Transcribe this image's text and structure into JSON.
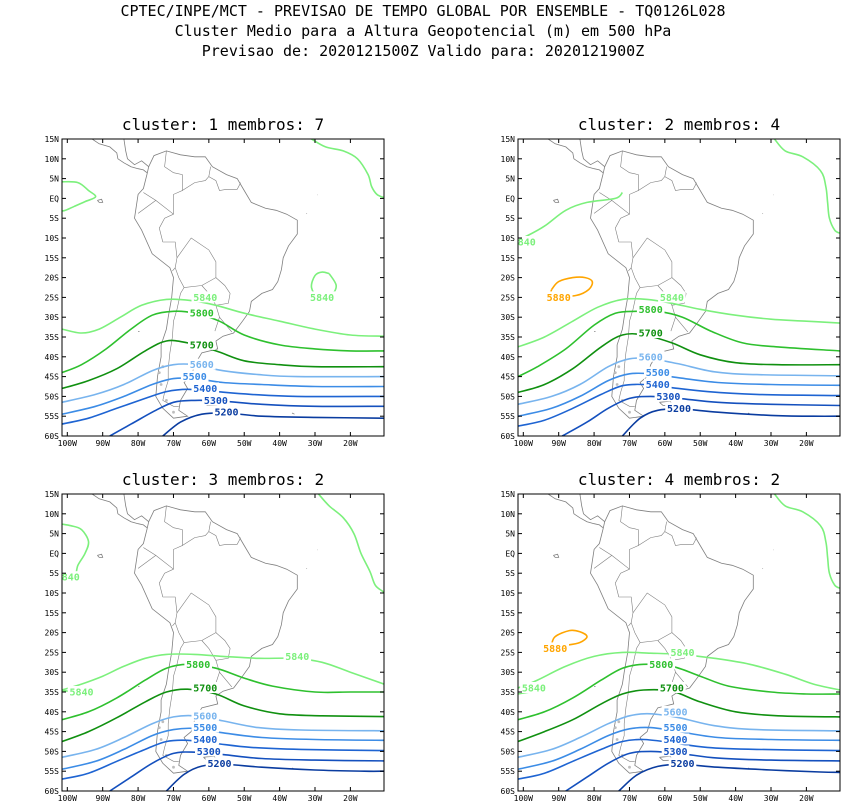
{
  "header": {
    "line1": "CPTEC/INPE/MCT - PREVISAO DE TEMPO GLOBAL POR ENSEMBLE - TQ0126L028",
    "line2": "Cluster Medio para a Altura Geopotencial (m) em 500 hPa",
    "line3": "Previsao de: 2020121500Z   Valido para: 2020121900Z"
  },
  "axes": {
    "lat_labels": [
      "15N",
      "10N",
      "5N",
      "EQ",
      "5S",
      "10S",
      "15S",
      "20S",
      "25S",
      "30S",
      "35S",
      "40S",
      "45S",
      "50S",
      "55S",
      "60S"
    ],
    "lon_labels": [
      "100W",
      "90W",
      "80W",
      "70W",
      "60W",
      "50W",
      "40W",
      "30W",
      "20W"
    ]
  },
  "colors": {
    "c5880": "#ffa500",
    "c5840": "#7cf07c",
    "c5800": "#2ec02e",
    "c5700": "#109010",
    "c5600": "#78b4ee",
    "c5500": "#3c8ce6",
    "c5400": "#1e64d2",
    "c5300": "#1450be",
    "c5200": "#0a3ca0",
    "coast": "#7f7f7f"
  },
  "panels": [
    {
      "title": "cluster: 1   membros: 7",
      "contours": [
        {
          "level": 5840,
          "label": "5840",
          "key": "c5840",
          "label_pt": [
            -61,
            -25
          ]
        },
        {
          "level": 5800,
          "label": "5800",
          "key": "c5800",
          "label_pt": [
            -62,
            -29
          ]
        },
        {
          "level": 5700,
          "label": "5700",
          "key": "c5700",
          "label_pt": [
            -62,
            -37
          ]
        },
        {
          "level": 5600,
          "label": "5600",
          "key": "c5600",
          "label_pt": [
            -62,
            -42
          ]
        },
        {
          "level": 5500,
          "label": "5500",
          "key": "c5500",
          "label_pt": [
            -64,
            -45
          ]
        },
        {
          "level": 5400,
          "label": "5400",
          "key": "c5400",
          "label_pt": [
            -61,
            -48
          ]
        },
        {
          "level": 5300,
          "label": "5300",
          "key": "c5300",
          "label_pt": [
            -58,
            -51
          ]
        },
        {
          "level": 5200,
          "label": "5200",
          "key": "c5200",
          "label_pt": [
            -55,
            -54
          ]
        },
        {
          "level": 5840,
          "label": "5840",
          "key": "c5840",
          "label_pt": [
            -28,
            -25
          ]
        }
      ]
    },
    {
      "title": "cluster: 2   membros: 4",
      "contours": [
        {
          "level": 5880,
          "label": "5880",
          "key": "c5880",
          "label_pt": [
            -90,
            -25
          ]
        },
        {
          "level": 5840,
          "label": "5840",
          "key": "c5840",
          "label_pt": [
            -58,
            -25
          ]
        },
        {
          "level": 5840,
          "label": "840",
          "key": "c5840",
          "label_pt": [
            -99,
            -11
          ]
        },
        {
          "level": 5800,
          "label": "5800",
          "key": "c5800",
          "label_pt": [
            -64,
            -28
          ]
        },
        {
          "level": 5700,
          "label": "5700",
          "key": "c5700",
          "label_pt": [
            -64,
            -34
          ]
        },
        {
          "level": 5600,
          "label": "5600",
          "key": "c5600",
          "label_pt": [
            -64,
            -40
          ]
        },
        {
          "level": 5500,
          "label": "5500",
          "key": "c5500",
          "label_pt": [
            -62,
            -44
          ]
        },
        {
          "level": 5400,
          "label": "5400",
          "key": "c5400",
          "label_pt": [
            -62,
            -47
          ]
        },
        {
          "level": 5300,
          "label": "5300",
          "key": "c5300",
          "label_pt": [
            -59,
            -50
          ]
        },
        {
          "level": 5200,
          "label": "5200",
          "key": "c5200",
          "label_pt": [
            -56,
            -53
          ]
        }
      ]
    },
    {
      "title": "cluster: 3   membros: 2",
      "contours": [
        {
          "level": 5840,
          "label": "5840",
          "key": "c5840",
          "label_pt": [
            -35,
            -26
          ]
        },
        {
          "level": 5840,
          "label": "5840",
          "key": "c5840",
          "label_pt": [
            -96,
            -35
          ]
        },
        {
          "level": 5840,
          "label": "840",
          "key": "c5840",
          "label_pt": [
            -99,
            -6
          ]
        },
        {
          "level": 5800,
          "label": "5800",
          "key": "c5800",
          "label_pt": [
            -63,
            -28
          ]
        },
        {
          "level": 5700,
          "label": "5700",
          "key": "c5700",
          "label_pt": [
            -61,
            -34
          ]
        },
        {
          "level": 5600,
          "label": "5600",
          "key": "c5600",
          "label_pt": [
            -61,
            -41
          ]
        },
        {
          "level": 5500,
          "label": "5500",
          "key": "c5500",
          "label_pt": [
            -61,
            -44
          ]
        },
        {
          "level": 5400,
          "label": "5400",
          "key": "c5400",
          "label_pt": [
            -61,
            -47
          ]
        },
        {
          "level": 5300,
          "label": "5300",
          "key": "c5300",
          "label_pt": [
            -60,
            -50
          ]
        },
        {
          "level": 5200,
          "label": "5200",
          "key": "c5200",
          "label_pt": [
            -57,
            -53
          ]
        }
      ]
    },
    {
      "title": "cluster: 4   membros: 2",
      "contours": [
        {
          "level": 5880,
          "label": "5880",
          "key": "c5880",
          "label_pt": [
            -91,
            -24
          ]
        },
        {
          "level": 5840,
          "label": "5840",
          "key": "c5840",
          "label_pt": [
            -55,
            -25
          ]
        },
        {
          "level": 5840,
          "label": "5840",
          "key": "c5840",
          "label_pt": [
            -97,
            -34
          ]
        },
        {
          "level": 5800,
          "label": "5800",
          "key": "c5800",
          "label_pt": [
            -61,
            -28
          ]
        },
        {
          "level": 5700,
          "label": "5700",
          "key": "c5700",
          "label_pt": [
            -58,
            -34
          ]
        },
        {
          "level": 5600,
          "label": "5600",
          "key": "c5600",
          "label_pt": [
            -57,
            -40
          ]
        },
        {
          "level": 5500,
          "label": "5500",
          "key": "c5500",
          "label_pt": [
            -57,
            -44
          ]
        },
        {
          "level": 5400,
          "label": "5400",
          "key": "c5400",
          "label_pt": [
            -57,
            -47
          ]
        },
        {
          "level": 5300,
          "label": "5300",
          "key": "c5300",
          "label_pt": [
            -57,
            -50
          ]
        },
        {
          "level": 5200,
          "label": "5200",
          "key": "c5200",
          "label_pt": [
            -55,
            -53
          ]
        }
      ]
    }
  ]
}
